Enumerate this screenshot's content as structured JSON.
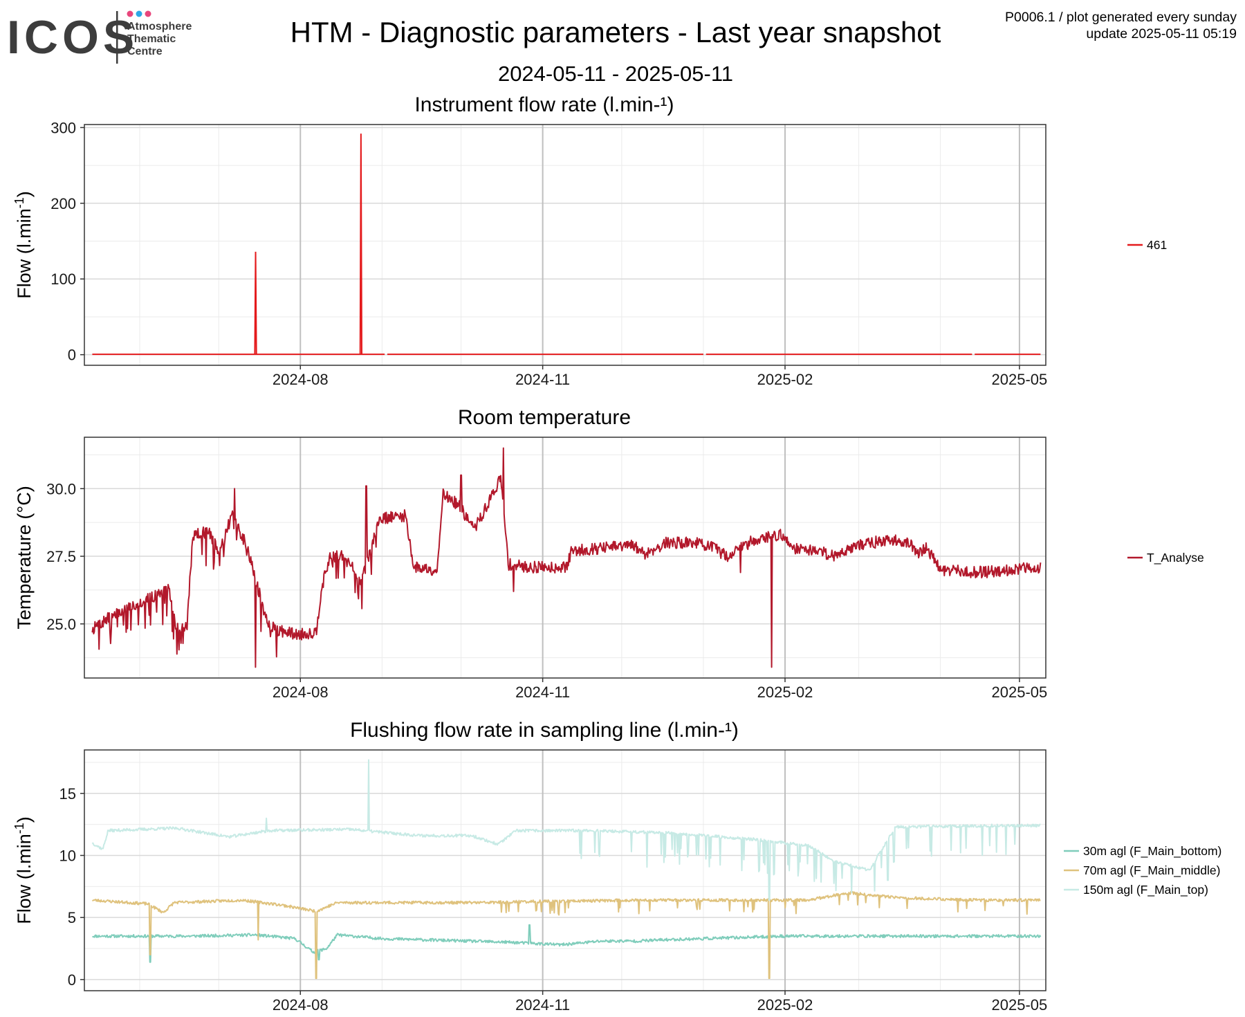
{
  "header": {
    "logo_brand": "ICOS",
    "logo_sub": [
      "Atmosphere",
      "Thematic",
      "Centre"
    ],
    "title": "HTM - Diagnostic parameters - Last year snapshot",
    "date_range": "2024-05-11 - 2025-05-11",
    "meta_line1": "P0006.1 / plot generated every sunday",
    "meta_line2": "update  2025-05-11 05:19"
  },
  "colors": {
    "flow461": "#e41a1c",
    "t_analyse": "#b2182b",
    "f_bottom": "#7fcdbb",
    "f_middle": "#dfc27d",
    "f_top": "#c7eae5",
    "logo_dot1": "#e8467c",
    "logo_dot2": "#2ea8e6",
    "logo_dot3": "#e8467c"
  },
  "chart_data": [
    {
      "type": "line",
      "title": "Instrument flow rate (l.min-¹)",
      "ylabel": "Flow (l.min",
      "ylabel_sup": "-1",
      "ylabel_end": ")",
      "xlabel": "",
      "xlim": [
        "2024-05-11",
        "2025-05-11"
      ],
      "ylim": [
        -14,
        304
      ],
      "x_ticks": [
        "2024-08",
        "2024-11",
        "2025-02",
        "2025-05"
      ],
      "y_ticks": [
        0,
        100,
        200,
        300
      ],
      "y_tick_labels": [
        "0",
        "100",
        "200",
        "300"
      ],
      "grid": true,
      "legend_position": "right",
      "series": [
        {
          "name": "461",
          "color": "#e41a1c",
          "kind": "spikes",
          "baseline": 0.5,
          "gaps": [
            [
              "2024-09-02",
              "2024-09-03"
            ],
            [
              "2025-01-01",
              "2025-01-02"
            ],
            [
              "2025-04-13",
              "2025-04-14"
            ]
          ],
          "spikes": [
            {
              "x": "2024-07-15",
              "y": 136
            },
            {
              "x": "2024-08-24",
              "y": 292
            }
          ]
        }
      ]
    },
    {
      "type": "line",
      "title": "Room temperature",
      "ylabel": "Temperature (°C)",
      "xlabel": "",
      "xlim": [
        "2024-05-11",
        "2025-05-11"
      ],
      "ylim": [
        23.0,
        31.9
      ],
      "x_ticks": [
        "2024-08",
        "2024-11",
        "2025-02",
        "2025-05"
      ],
      "y_ticks": [
        25.0,
        27.5,
        30.0
      ],
      "y_tick_labels": [
        "25.0",
        "27.5",
        "30.0"
      ],
      "grid": true,
      "legend_position": "right",
      "series": [
        {
          "name": "T_Analyse",
          "color": "#b2182b",
          "kind": "noisy",
          "seed": 7,
          "knots": [
            [
              "2024-05-14",
              24.8
            ],
            [
              "2024-05-20",
              25.2
            ],
            [
              "2024-05-30",
              25.7
            ],
            [
              "2024-06-06",
              26.0
            ],
            [
              "2024-06-12",
              26.3
            ],
            [
              "2024-06-15",
              24.8
            ],
            [
              "2024-06-19",
              24.9
            ],
            [
              "2024-06-21",
              28.3
            ],
            [
              "2024-06-27",
              28.4
            ],
            [
              "2024-07-01",
              27.7
            ],
            [
              "2024-07-06",
              29.0
            ],
            [
              "2024-07-12",
              27.8
            ],
            [
              "2024-07-16",
              26.3
            ],
            [
              "2024-07-19",
              25.2
            ],
            [
              "2024-07-22",
              24.8
            ],
            [
              "2024-07-31",
              24.6
            ],
            [
              "2024-08-07",
              24.7
            ],
            [
              "2024-08-09",
              26.3
            ],
            [
              "2024-08-12",
              27.4
            ],
            [
              "2024-08-18",
              27.6
            ],
            [
              "2024-08-24",
              26.5
            ],
            [
              "2024-08-28",
              27.8
            ],
            [
              "2024-08-31",
              28.9
            ],
            [
              "2024-09-10",
              29.0
            ],
            [
              "2024-09-13",
              27.1
            ],
            [
              "2024-09-22",
              27.0
            ],
            [
              "2024-09-24",
              29.8
            ],
            [
              "2024-09-30",
              29.4
            ],
            [
              "2024-10-06",
              28.5
            ],
            [
              "2024-10-10",
              29.2
            ],
            [
              "2024-10-16",
              30.4
            ],
            [
              "2024-10-19",
              27.2
            ],
            [
              "2024-10-26",
              27.1
            ],
            [
              "2024-11-10",
              27.1
            ],
            [
              "2024-11-12",
              27.7
            ],
            [
              "2024-11-23",
              27.8
            ],
            [
              "2024-12-05",
              27.9
            ],
            [
              "2024-12-10",
              27.6
            ],
            [
              "2024-12-18",
              28.0
            ],
            [
              "2024-12-30",
              28.0
            ],
            [
              "2025-01-05",
              27.8
            ],
            [
              "2025-01-10",
              27.5
            ],
            [
              "2025-01-20",
              28.1
            ],
            [
              "2025-01-30",
              28.3
            ],
            [
              "2025-02-05",
              27.8
            ],
            [
              "2025-02-14",
              27.7
            ],
            [
              "2025-02-20",
              27.5
            ],
            [
              "2025-02-25",
              27.8
            ],
            [
              "2025-03-05",
              28.0
            ],
            [
              "2025-03-16",
              28.1
            ],
            [
              "2025-03-20",
              28.0
            ],
            [
              "2025-03-23",
              27.6
            ],
            [
              "2025-03-27",
              27.8
            ],
            [
              "2025-04-01",
              27.0
            ],
            [
              "2025-04-15",
              26.9
            ],
            [
              "2025-05-09",
              27.1
            ]
          ],
          "dips": [
            {
              "x": "2025-01-27",
              "y": 23.4
            },
            {
              "x": "2024-07-15",
              "y": 23.4
            },
            {
              "x": "2024-10-21",
              "y": 26.2
            },
            {
              "x": "2025-01-15",
              "y": 26.9
            }
          ],
          "peaks": [
            {
              "x": "2024-10-17",
              "y": 31.5
            },
            {
              "x": "2024-07-07",
              "y": 30.0
            },
            {
              "x": "2024-08-26",
              "y": 30.1
            },
            {
              "x": "2024-10-01",
              "y": 30.5
            }
          ]
        }
      ]
    },
    {
      "type": "line",
      "title": "Flushing flow rate in sampling line (l.min-¹)",
      "ylabel": "Flow (l.min",
      "ylabel_sup": "-1",
      "ylabel_end": ")",
      "xlabel": "",
      "xlim": [
        "2024-05-11",
        "2025-05-11"
      ],
      "ylim": [
        -0.9,
        18.5
      ],
      "x_ticks": [
        "2024-08",
        "2024-11",
        "2025-02",
        "2025-05"
      ],
      "y_ticks": [
        0,
        5,
        10,
        15
      ],
      "y_tick_labels": [
        "0",
        "5",
        "10",
        "15"
      ],
      "grid": true,
      "legend_position": "right",
      "series": [
        {
          "name": "30m agl (F_Main_bottom)",
          "color": "#7fcdbb",
          "kind": "flat",
          "seed": 11,
          "knots": [
            [
              "2024-05-14",
              3.5
            ],
            [
              "2024-06-20",
              3.5
            ],
            [
              "2024-07-15",
              3.6
            ],
            [
              "2024-07-30",
              3.3
            ],
            [
              "2024-08-06",
              2.2
            ],
            [
              "2024-08-11",
              2.5
            ],
            [
              "2024-08-15",
              3.6
            ],
            [
              "2024-09-01",
              3.3
            ],
            [
              "2024-10-20",
              3.0
            ],
            [
              "2024-11-08",
              2.8
            ],
            [
              "2024-11-23",
              3.1
            ],
            [
              "2024-12-06",
              3.1
            ],
            [
              "2024-12-17",
              3.2
            ],
            [
              "2025-02-01",
              3.5
            ],
            [
              "2025-05-09",
              3.5
            ]
          ],
          "dips": [
            {
              "x": "2024-06-05",
              "y": 1.4
            },
            {
              "x": "2024-08-08",
              "y": 1.6
            }
          ],
          "peaks": [
            {
              "x": "2024-10-27",
              "y": 4.4
            }
          ]
        },
        {
          "name": "70m agl (F_Main_middle)",
          "color": "#dfc27d",
          "kind": "flat",
          "seed": 23,
          "knots": [
            [
              "2024-05-14",
              6.4
            ],
            [
              "2024-06-04",
              6.1
            ],
            [
              "2024-06-10",
              5.4
            ],
            [
              "2024-06-14",
              6.2
            ],
            [
              "2024-07-10",
              6.4
            ],
            [
              "2024-07-25",
              6.0
            ],
            [
              "2024-08-07",
              5.5
            ],
            [
              "2024-08-15",
              6.2
            ],
            [
              "2024-10-10",
              6.2
            ],
            [
              "2024-11-01",
              6.3
            ],
            [
              "2024-12-10",
              6.4
            ],
            [
              "2025-01-10",
              6.4
            ],
            [
              "2025-02-10",
              6.4
            ],
            [
              "2025-02-25",
              7.0
            ],
            [
              "2025-03-15",
              6.6
            ],
            [
              "2025-04-15",
              6.4
            ],
            [
              "2025-05-09",
              6.4
            ]
          ],
          "dips": [
            {
              "x": "2024-08-07",
              "y": 0.1
            },
            {
              "x": "2025-01-26",
              "y": 0.1
            },
            {
              "x": "2024-06-05",
              "y": 2.0
            },
            {
              "x": "2024-07-16",
              "y": 3.2
            }
          ],
          "peaks": []
        },
        {
          "name": "150m agl (F_Main_top)",
          "color": "#c7eae5",
          "kind": "flat",
          "seed": 37,
          "knots": [
            [
              "2024-05-14",
              11.0
            ],
            [
              "2024-05-18",
              10.5
            ],
            [
              "2024-05-20",
              12.0
            ],
            [
              "2024-06-15",
              12.2
            ],
            [
              "2024-07-05",
              11.5
            ],
            [
              "2024-07-20",
              12.0
            ],
            [
              "2024-08-20",
              12.1
            ],
            [
              "2024-09-15",
              11.6
            ],
            [
              "2024-10-05",
              11.6
            ],
            [
              "2024-10-15",
              10.9
            ],
            [
              "2024-10-22",
              12.0
            ],
            [
              "2024-11-20",
              12.0
            ],
            [
              "2024-12-20",
              11.8
            ],
            [
              "2025-01-20",
              11.3
            ],
            [
              "2025-02-10",
              10.8
            ],
            [
              "2025-02-20",
              9.5
            ],
            [
              "2025-03-05",
              8.8
            ],
            [
              "2025-03-15",
              12.3
            ],
            [
              "2025-04-20",
              12.4
            ],
            [
              "2025-05-09",
              12.4
            ]
          ],
          "dips": [
            {
              "x": "2025-01-26",
              "y": 6.4
            },
            {
              "x": "2025-03-12",
              "y": 8.0
            }
          ],
          "peaks": [
            {
              "x": "2024-08-27",
              "y": 17.7
            },
            {
              "x": "2024-07-19",
              "y": 13.0
            }
          ]
        }
      ]
    }
  ]
}
